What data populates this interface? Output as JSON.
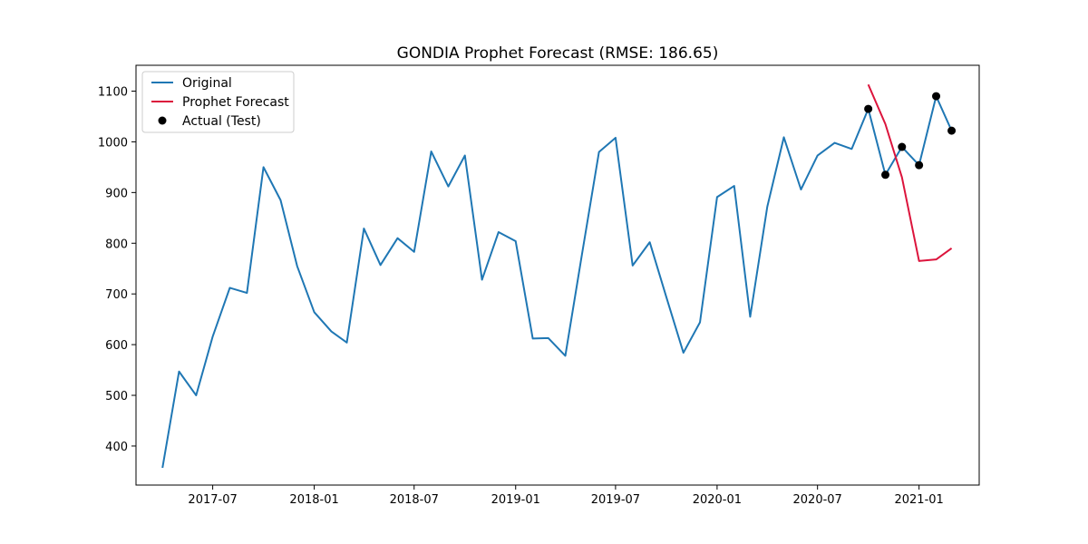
{
  "chart_data": {
    "type": "line",
    "title": "GONDIA Prophet Forecast (RMSE: 186.65)",
    "xlabel": "",
    "ylabel": "",
    "x_range": [
      "2017-02-12",
      "2021-04-20"
    ],
    "ylim": [
      323,
      1151
    ],
    "x_ticks": [
      "2017-07",
      "2018-01",
      "2018-07",
      "2019-01",
      "2019-07",
      "2020-01",
      "2020-07",
      "2021-01"
    ],
    "y_ticks": [
      400,
      500,
      600,
      700,
      800,
      900,
      1000,
      1100
    ],
    "grid": false,
    "legend_position": "top-left",
    "series": [
      {
        "name": "Original",
        "kind": "line",
        "color": "#1f77b4",
        "points": [
          [
            "2017-04-01",
            357
          ],
          [
            "2017-05-01",
            547
          ],
          [
            "2017-06-01",
            500
          ],
          [
            "2017-07-01",
            616
          ],
          [
            "2017-08-01",
            712
          ],
          [
            "2017-09-01",
            702
          ],
          [
            "2017-10-01",
            950
          ],
          [
            "2017-11-01",
            885
          ],
          [
            "2017-12-01",
            755
          ],
          [
            "2018-01-01",
            664
          ],
          [
            "2018-02-01",
            626
          ],
          [
            "2018-03-01",
            604
          ],
          [
            "2018-04-01",
            829
          ],
          [
            "2018-05-01",
            757
          ],
          [
            "2018-06-01",
            810
          ],
          [
            "2018-07-01",
            783
          ],
          [
            "2018-08-01",
            981
          ],
          [
            "2018-09-01",
            912
          ],
          [
            "2018-10-01",
            973
          ],
          [
            "2018-11-01",
            728
          ],
          [
            "2018-12-01",
            822
          ],
          [
            "2019-01-01",
            804
          ],
          [
            "2019-02-01",
            612
          ],
          [
            "2019-03-01",
            613
          ],
          [
            "2019-04-01",
            578
          ],
          [
            "2019-05-01",
            777
          ],
          [
            "2019-06-01",
            980
          ],
          [
            "2019-07-01",
            1008
          ],
          [
            "2019-08-01",
            756
          ],
          [
            "2019-09-01",
            802
          ],
          [
            "2019-10-01",
            694
          ],
          [
            "2019-11-01",
            584
          ],
          [
            "2019-12-01",
            644
          ],
          [
            "2020-01-01",
            891
          ],
          [
            "2020-02-01",
            913
          ],
          [
            "2020-03-01",
            655
          ],
          [
            "2020-04-01",
            872
          ],
          [
            "2020-05-01",
            1009
          ],
          [
            "2020-06-01",
            906
          ],
          [
            "2020-07-01",
            973
          ],
          [
            "2020-08-01",
            998
          ],
          [
            "2020-09-01",
            986
          ],
          [
            "2020-10-01",
            1065
          ],
          [
            "2020-11-01",
            935
          ],
          [
            "2020-12-01",
            990
          ],
          [
            "2021-01-01",
            954
          ],
          [
            "2021-02-01",
            1090
          ],
          [
            "2021-03-01",
            1022
          ]
        ]
      },
      {
        "name": "Prophet Forecast",
        "kind": "line",
        "color": "#dc143c",
        "points": [
          [
            "2020-10-01",
            1113
          ],
          [
            "2020-11-01",
            1035
          ],
          [
            "2020-12-01",
            930
          ],
          [
            "2021-01-01",
            765
          ],
          [
            "2021-02-01",
            768
          ],
          [
            "2021-03-01",
            790
          ]
        ]
      },
      {
        "name": "Actual (Test)",
        "kind": "scatter",
        "color": "#000000",
        "points": [
          [
            "2020-10-01",
            1065
          ],
          [
            "2020-11-01",
            935
          ],
          [
            "2020-12-01",
            990
          ],
          [
            "2021-01-01",
            954
          ],
          [
            "2021-02-01",
            1090
          ],
          [
            "2021-03-01",
            1022
          ]
        ]
      }
    ]
  }
}
